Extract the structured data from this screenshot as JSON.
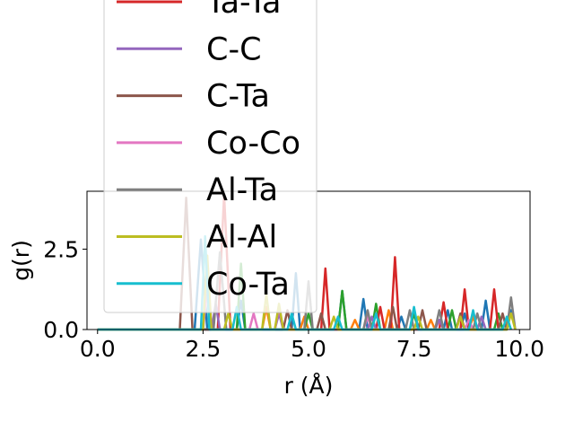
{
  "chart_data": {
    "type": "line",
    "xlabel": "r (Å)",
    "ylabel": "g(r)",
    "xlim": [
      -0.25,
      10.25
    ],
    "ylim": [
      0,
      4.3
    ],
    "x_ticks": [
      "0.0",
      "2.5",
      "5.0",
      "7.5",
      "10.0"
    ],
    "y_ticks": [
      "0.0",
      "2.5"
    ],
    "grid": false,
    "legend_position": "upper-left (extends above the axes)",
    "legend_visible_series": [
      "Ta-Ta",
      "C-C",
      "C-Ta",
      "Co-Co",
      "Al-Ta",
      "Al-Al",
      "Co-Ta"
    ],
    "series": [
      {
        "color": "#1f77b4",
        "points": [
          [
            0,
            0
          ],
          [
            2.3,
            0
          ],
          [
            2.45,
            2.8
          ],
          [
            2.6,
            0
          ],
          [
            3.3,
            0
          ],
          [
            3.4,
            0.9
          ],
          [
            3.5,
            0
          ],
          [
            4.6,
            0
          ],
          [
            4.7,
            1.75
          ],
          [
            4.8,
            0
          ],
          [
            5.7,
            0
          ],
          [
            5.8,
            1.2
          ],
          [
            5.9,
            0
          ],
          [
            6.2,
            0
          ],
          [
            6.3,
            0.95
          ],
          [
            6.4,
            0
          ],
          [
            7.1,
            0
          ],
          [
            7.2,
            0.4
          ],
          [
            7.3,
            0
          ],
          [
            8.2,
            0
          ],
          [
            8.3,
            0.6
          ],
          [
            8.4,
            0
          ],
          [
            8.6,
            0
          ],
          [
            8.7,
            0.5
          ],
          [
            8.8,
            0
          ],
          [
            9.1,
            0
          ],
          [
            9.2,
            0.9
          ],
          [
            9.3,
            0
          ],
          [
            9.7,
            0
          ],
          [
            9.8,
            0.6
          ],
          [
            9.9,
            0
          ]
        ]
      },
      {
        "color": "#ff7f0e",
        "points": [
          [
            0,
            0
          ],
          [
            3.9,
            0
          ],
          [
            4.0,
            0.7
          ],
          [
            4.1,
            0
          ],
          [
            4.8,
            0
          ],
          [
            4.9,
            0.4
          ],
          [
            5.0,
            0
          ],
          [
            6.0,
            0
          ],
          [
            6.1,
            0.3
          ],
          [
            6.2,
            0
          ],
          [
            6.8,
            0
          ],
          [
            6.9,
            0.6
          ],
          [
            7.0,
            0
          ],
          [
            7.8,
            0
          ],
          [
            7.9,
            0.3
          ],
          [
            8.0,
            0
          ],
          [
            8.8,
            0
          ],
          [
            8.9,
            0.4
          ],
          [
            9.0,
            0
          ],
          [
            9.6,
            0
          ],
          [
            9.7,
            0.3
          ],
          [
            9.8,
            0
          ]
        ]
      },
      {
        "color": "#2ca02c",
        "points": [
          [
            0,
            0
          ],
          [
            3.3,
            0
          ],
          [
            3.4,
            2.05
          ],
          [
            3.5,
            0
          ],
          [
            4.9,
            0
          ],
          [
            5.0,
            0.5
          ],
          [
            5.1,
            0
          ],
          [
            5.7,
            0
          ],
          [
            5.8,
            1.2
          ],
          [
            5.9,
            0
          ],
          [
            6.5,
            0
          ],
          [
            6.6,
            0.8
          ],
          [
            6.7,
            0
          ],
          [
            7.4,
            0
          ],
          [
            7.5,
            0.5
          ],
          [
            7.6,
            0
          ],
          [
            8.3,
            0
          ],
          [
            8.4,
            0.6
          ],
          [
            8.5,
            0
          ],
          [
            9.4,
            0
          ],
          [
            9.5,
            0.5
          ],
          [
            9.6,
            0
          ]
        ]
      },
      {
        "color": "#d62728",
        "points": [
          [
            0,
            0
          ],
          [
            2.85,
            0
          ],
          [
            3.0,
            4.2
          ],
          [
            3.15,
            0
          ],
          [
            5.3,
            0
          ],
          [
            5.4,
            1.9
          ],
          [
            5.5,
            0
          ],
          [
            6.6,
            0
          ],
          [
            6.7,
            0.7
          ],
          [
            6.8,
            0
          ],
          [
            6.95,
            0
          ],
          [
            7.05,
            2.25
          ],
          [
            7.15,
            0
          ],
          [
            8.1,
            0
          ],
          [
            8.2,
            0.85
          ],
          [
            8.3,
            0
          ],
          [
            8.6,
            0
          ],
          [
            8.7,
            1.25
          ],
          [
            8.8,
            0
          ],
          [
            9.3,
            0
          ],
          [
            9.4,
            1.25
          ],
          [
            9.5,
            0
          ]
        ]
      },
      {
        "color": "#9467bd",
        "points": [
          [
            0,
            0
          ],
          [
            2.7,
            0
          ],
          [
            2.8,
            0.8
          ],
          [
            2.9,
            0
          ],
          [
            4.2,
            0
          ],
          [
            4.3,
            0.5
          ],
          [
            4.4,
            0
          ],
          [
            6.4,
            0
          ],
          [
            6.5,
            0.4
          ],
          [
            6.6,
            0
          ],
          [
            8.0,
            0
          ],
          [
            8.1,
            0.3
          ],
          [
            8.2,
            0
          ],
          [
            9.0,
            0
          ],
          [
            9.1,
            0.4
          ],
          [
            9.2,
            0
          ]
        ]
      },
      {
        "color": "#8c564b",
        "points": [
          [
            0,
            0
          ],
          [
            1.95,
            0
          ],
          [
            2.1,
            4.1
          ],
          [
            2.25,
            0
          ],
          [
            4.4,
            0
          ],
          [
            4.5,
            0.6
          ],
          [
            4.6,
            0
          ],
          [
            5.2,
            0
          ],
          [
            5.3,
            0.5
          ],
          [
            5.4,
            0
          ],
          [
            6.9,
            0
          ],
          [
            7.0,
            0.7
          ],
          [
            7.1,
            0
          ],
          [
            7.6,
            0
          ],
          [
            7.7,
            0.6
          ],
          [
            7.8,
            0
          ],
          [
            8.5,
            0
          ],
          [
            8.6,
            0.5
          ],
          [
            8.7,
            0
          ],
          [
            9.5,
            0
          ],
          [
            9.6,
            0.5
          ],
          [
            9.7,
            0
          ]
        ]
      },
      {
        "color": "#e377c2",
        "points": [
          [
            0,
            0
          ],
          [
            2.5,
            0
          ],
          [
            2.6,
            1.3
          ],
          [
            2.7,
            0
          ],
          [
            3.6,
            0
          ],
          [
            3.7,
            0.5
          ],
          [
            3.8,
            0
          ],
          [
            4.2,
            0
          ],
          [
            4.3,
            0.7
          ],
          [
            4.4,
            0
          ],
          [
            6.3,
            0
          ],
          [
            6.4,
            0.4
          ],
          [
            6.5,
            0
          ],
          [
            8.7,
            0
          ],
          [
            8.8,
            0.3
          ],
          [
            8.9,
            0
          ]
        ]
      },
      {
        "color": "#7f7f7f",
        "points": [
          [
            0,
            0
          ],
          [
            2.75,
            0
          ],
          [
            2.9,
            2.4
          ],
          [
            3.05,
            0
          ],
          [
            4.9,
            0
          ],
          [
            5.0,
            1.5
          ],
          [
            5.1,
            0
          ],
          [
            6.3,
            0
          ],
          [
            6.4,
            0.6
          ],
          [
            6.5,
            0
          ],
          [
            7.3,
            0
          ],
          [
            7.4,
            0.6
          ],
          [
            7.5,
            0
          ],
          [
            8.0,
            0
          ],
          [
            8.1,
            0.6
          ],
          [
            8.2,
            0
          ],
          [
            8.9,
            0
          ],
          [
            9.0,
            0.5
          ],
          [
            9.1,
            0
          ],
          [
            9.7,
            0
          ],
          [
            9.8,
            1.0
          ],
          [
            9.9,
            0
          ]
        ]
      },
      {
        "color": "#bcbd22",
        "points": [
          [
            0,
            0
          ],
          [
            2.5,
            0
          ],
          [
            2.6,
            2.3
          ],
          [
            2.7,
            0
          ],
          [
            3.0,
            0
          ],
          [
            3.1,
            0.5
          ],
          [
            3.2,
            0
          ],
          [
            3.9,
            0
          ],
          [
            4.0,
            1.1
          ],
          [
            4.1,
            0
          ],
          [
            4.2,
            0
          ],
          [
            4.3,
            0.8
          ],
          [
            4.4,
            0
          ],
          [
            5.5,
            0
          ],
          [
            5.6,
            0.4
          ],
          [
            5.7,
            0
          ],
          [
            7.5,
            0
          ],
          [
            7.6,
            0.4
          ],
          [
            7.7,
            0
          ],
          [
            8.5,
            0
          ],
          [
            8.6,
            0.4
          ],
          [
            8.7,
            0
          ],
          [
            9.7,
            0
          ],
          [
            9.8,
            0.5
          ],
          [
            9.9,
            0
          ]
        ]
      },
      {
        "color": "#17becf",
        "points": [
          [
            0,
            0
          ],
          [
            2.45,
            0
          ],
          [
            2.55,
            2.9
          ],
          [
            2.65,
            0
          ],
          [
            3.2,
            0
          ],
          [
            3.3,
            0.7
          ],
          [
            3.4,
            0
          ],
          [
            4.5,
            0
          ],
          [
            4.6,
            0.5
          ],
          [
            4.7,
            0
          ],
          [
            5.6,
            0
          ],
          [
            5.7,
            0.4
          ],
          [
            5.8,
            0
          ],
          [
            6.5,
            0
          ],
          [
            6.6,
            0.5
          ],
          [
            6.7,
            0
          ],
          [
            7.4,
            0
          ],
          [
            7.5,
            0.7
          ],
          [
            7.6,
            0
          ],
          [
            8.8,
            0
          ],
          [
            8.9,
            0.6
          ],
          [
            9.0,
            0
          ],
          [
            9.6,
            0
          ],
          [
            9.7,
            0.4
          ],
          [
            9.8,
            0
          ]
        ]
      }
    ],
    "legend_entries": [
      {
        "name": "Ta-Ta",
        "color": "#d62728"
      },
      {
        "name": "C-C",
        "color": "#9467bd"
      },
      {
        "name": "C-Ta",
        "color": "#8c564b"
      },
      {
        "name": "Co-Co",
        "color": "#e377c2"
      },
      {
        "name": "Al-Ta",
        "color": "#7f7f7f"
      },
      {
        "name": "Al-Al",
        "color": "#bcbd22"
      },
      {
        "name": "Co-Ta",
        "color": "#17becf"
      }
    ]
  }
}
